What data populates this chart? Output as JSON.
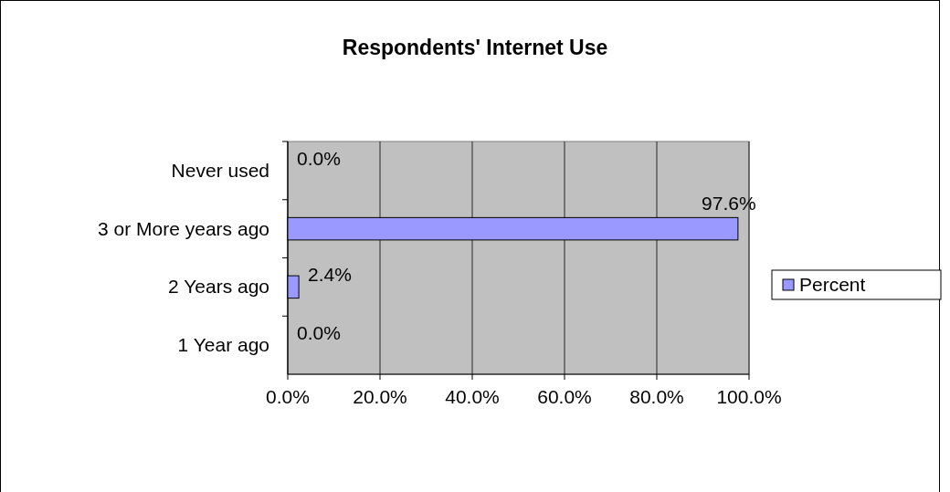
{
  "chart_data": {
    "type": "bar",
    "orientation": "horizontal",
    "title": "Respondents' Internet Use",
    "categories": [
      "Never used",
      "3 or More years ago",
      "2 Years ago",
      "1 Year ago"
    ],
    "series": [
      {
        "name": "Percent",
        "color": "#9999ff",
        "values": [
          0,
          97.6,
          2.4,
          0
        ],
        "value_labels": [
          "0.0%",
          "97.6%",
          "2.4%",
          "0.0%"
        ]
      }
    ],
    "xlim": [
      0,
      100
    ],
    "xticks": [
      {
        "value": 0,
        "label": "0.0%"
      },
      {
        "value": 20,
        "label": "20.0%"
      },
      {
        "value": 40,
        "label": "40.0%"
      },
      {
        "value": 60,
        "label": "60.0%"
      },
      {
        "value": 80,
        "label": "80.0%"
      },
      {
        "value": 100,
        "label": "100.0%"
      }
    ],
    "grid": "x",
    "legend": "right"
  }
}
